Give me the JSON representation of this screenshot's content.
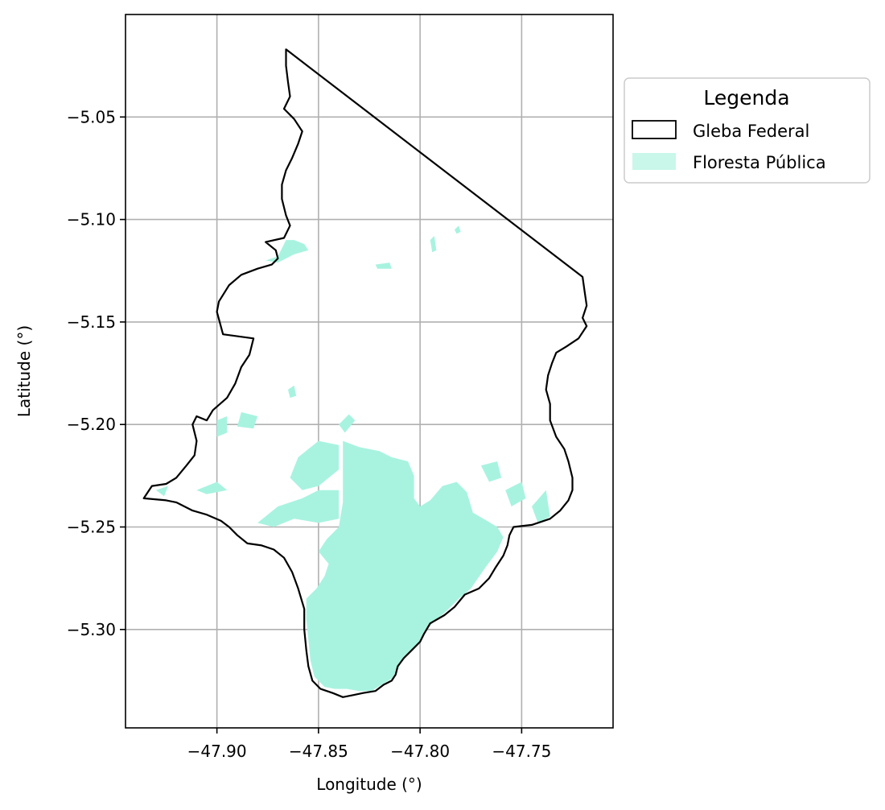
{
  "chart_data": {
    "type": "map",
    "xlabel": "Longitude (°)",
    "ylabel": "Latitude (°)",
    "xlim": [
      -47.945,
      -47.705
    ],
    "ylim": [
      -5.348,
      -5.0
    ],
    "x_ticks": [
      -47.9,
      -47.85,
      -47.8,
      -47.75
    ],
    "x_tick_labels": [
      "−47.90",
      "−47.85",
      "−47.80",
      "−47.75"
    ],
    "y_ticks": [
      -5.05,
      -5.1,
      -5.15,
      -5.2,
      -5.25,
      -5.3
    ],
    "y_tick_labels": [
      "−5.05",
      "−5.10",
      "−5.15",
      "−5.20",
      "−5.25",
      "−5.30"
    ],
    "grid": true,
    "legend": {
      "title": "Legenda",
      "placement": "outside-right",
      "entries": [
        {
          "label": "Gleba Federal",
          "style": "outline",
          "color": "#000000"
        },
        {
          "label": "Floresta Pública",
          "style": "fill",
          "color": "#a8f3e0"
        }
      ]
    },
    "colors": {
      "gleba": "#000000",
      "floresta": "#a8f3e0"
    },
    "gleba_federal": [
      [
        -47.866,
        -5.017
      ],
      [
        -47.72,
        -5.128
      ],
      [
        -47.719,
        -5.135
      ],
      [
        -47.718,
        -5.142
      ],
      [
        -47.72,
        -5.148
      ],
      [
        -47.718,
        -5.152
      ],
      [
        -47.722,
        -5.158
      ],
      [
        -47.728,
        -5.162
      ],
      [
        -47.733,
        -5.165
      ],
      [
        -47.735,
        -5.17
      ],
      [
        -47.737,
        -5.176
      ],
      [
        -47.738,
        -5.183
      ],
      [
        -47.736,
        -5.19
      ],
      [
        -47.736,
        -5.198
      ],
      [
        -47.733,
        -5.206
      ],
      [
        -47.729,
        -5.212
      ],
      [
        -47.727,
        -5.218
      ],
      [
        -47.725,
        -5.226
      ],
      [
        -47.725,
        -5.232
      ],
      [
        -47.727,
        -5.237
      ],
      [
        -47.731,
        -5.242
      ],
      [
        -47.736,
        -5.246
      ],
      [
        -47.745,
        -5.249
      ],
      [
        -47.754,
        -5.25
      ],
      [
        -47.756,
        -5.254
      ],
      [
        -47.757,
        -5.259
      ],
      [
        -47.759,
        -5.264
      ],
      [
        -47.763,
        -5.27
      ],
      [
        -47.766,
        -5.275
      ],
      [
        -47.771,
        -5.28
      ],
      [
        -47.778,
        -5.283
      ],
      [
        -47.783,
        -5.289
      ],
      [
        -47.788,
        -5.293
      ],
      [
        -47.795,
        -5.297
      ],
      [
        -47.798,
        -5.302
      ],
      [
        -47.8,
        -5.306
      ],
      [
        -47.804,
        -5.31
      ],
      [
        -47.808,
        -5.314
      ],
      [
        -47.811,
        -5.318
      ],
      [
        -47.812,
        -5.322
      ],
      [
        -47.814,
        -5.325
      ],
      [
        -47.818,
        -5.327
      ],
      [
        -47.822,
        -5.33
      ],
      [
        -47.828,
        -5.331
      ],
      [
        -47.833,
        -5.332
      ],
      [
        -47.838,
        -5.333
      ],
      [
        -47.843,
        -5.331
      ],
      [
        -47.849,
        -5.329
      ],
      [
        -47.853,
        -5.325
      ],
      [
        -47.855,
        -5.318
      ],
      [
        -47.856,
        -5.31
      ],
      [
        -47.857,
        -5.3
      ],
      [
        -47.857,
        -5.29
      ],
      [
        -47.86,
        -5.28
      ],
      [
        -47.863,
        -5.272
      ],
      [
        -47.867,
        -5.265
      ],
      [
        -47.872,
        -5.261
      ],
      [
        -47.878,
        -5.259
      ],
      [
        -47.885,
        -5.258
      ],
      [
        -47.89,
        -5.254
      ],
      [
        -47.894,
        -5.25
      ],
      [
        -47.898,
        -5.247
      ],
      [
        -47.905,
        -5.244
      ],
      [
        -47.912,
        -5.242
      ],
      [
        -47.92,
        -5.238
      ],
      [
        -47.925,
        -5.237
      ],
      [
        -47.936,
        -5.236
      ],
      [
        -47.932,
        -5.23
      ],
      [
        -47.925,
        -5.229
      ],
      [
        -47.92,
        -5.226
      ],
      [
        -47.915,
        -5.22
      ],
      [
        -47.911,
        -5.215
      ],
      [
        -47.91,
        -5.208
      ],
      [
        -47.912,
        -5.2
      ],
      [
        -47.91,
        -5.196
      ],
      [
        -47.905,
        -5.198
      ],
      [
        -47.902,
        -5.193
      ],
      [
        -47.895,
        -5.187
      ],
      [
        -47.891,
        -5.18
      ],
      [
        -47.888,
        -5.172
      ],
      [
        -47.884,
        -5.166
      ],
      [
        -47.882,
        -5.158
      ],
      [
        -47.897,
        -5.156
      ],
      [
        -47.9,
        -5.145
      ],
      [
        -47.899,
        -5.14
      ],
      [
        -47.894,
        -5.132
      ],
      [
        -47.888,
        -5.127
      ],
      [
        -47.88,
        -5.124
      ],
      [
        -47.873,
        -5.122
      ],
      [
        -47.87,
        -5.119
      ],
      [
        -47.871,
        -5.115
      ],
      [
        -47.876,
        -5.111
      ],
      [
        -47.867,
        -5.109
      ],
      [
        -47.864,
        -5.103
      ],
      [
        -47.866,
        -5.098
      ],
      [
        -47.868,
        -5.09
      ],
      [
        -47.868,
        -5.083
      ],
      [
        -47.866,
        -5.076
      ],
      [
        -47.863,
        -5.07
      ],
      [
        -47.86,
        -5.063
      ],
      [
        -47.858,
        -5.057
      ],
      [
        -47.862,
        -5.051
      ],
      [
        -47.867,
        -5.046
      ],
      [
        -47.864,
        -5.04
      ],
      [
        -47.865,
        -5.033
      ],
      [
        -47.866,
        -5.025
      ],
      [
        -47.866,
        -5.017
      ]
    ],
    "floresta_publica": [
      [
        [
          -47.838,
          -5.208
        ],
        [
          -47.83,
          -5.211
        ],
        [
          -47.82,
          -5.213
        ],
        [
          -47.814,
          -5.216
        ],
        [
          -47.806,
          -5.218
        ],
        [
          -47.803,
          -5.225
        ],
        [
          -47.803,
          -5.236
        ],
        [
          -47.8,
          -5.24
        ],
        [
          -47.795,
          -5.237
        ],
        [
          -47.789,
          -5.23
        ],
        [
          -47.782,
          -5.228
        ],
        [
          -47.777,
          -5.233
        ],
        [
          -47.774,
          -5.243
        ],
        [
          -47.767,
          -5.247
        ],
        [
          -47.762,
          -5.25
        ],
        [
          -47.759,
          -5.255
        ],
        [
          -47.762,
          -5.262
        ],
        [
          -47.768,
          -5.27
        ],
        [
          -47.775,
          -5.28
        ],
        [
          -47.781,
          -5.285
        ],
        [
          -47.787,
          -5.291
        ],
        [
          -47.793,
          -5.296
        ],
        [
          -47.798,
          -5.301
        ],
        [
          -47.8,
          -5.306
        ],
        [
          -47.805,
          -5.311
        ],
        [
          -47.809,
          -5.315
        ],
        [
          -47.811,
          -5.32
        ],
        [
          -47.814,
          -5.324
        ],
        [
          -47.819,
          -5.327
        ],
        [
          -47.824,
          -5.33
        ],
        [
          -47.83,
          -5.33
        ],
        [
          -47.836,
          -5.329
        ],
        [
          -47.842,
          -5.329
        ],
        [
          -47.847,
          -5.328
        ],
        [
          -47.852,
          -5.323
        ],
        [
          -47.854,
          -5.315
        ],
        [
          -47.855,
          -5.305
        ],
        [
          -47.856,
          -5.295
        ],
        [
          -47.856,
          -5.285
        ],
        [
          -47.851,
          -5.28
        ],
        [
          -47.847,
          -5.274
        ],
        [
          -47.845,
          -5.268
        ],
        [
          -47.85,
          -5.262
        ],
        [
          -47.846,
          -5.256
        ],
        [
          -47.84,
          -5.25
        ],
        [
          -47.838,
          -5.238
        ],
        [
          -47.838,
          -5.222
        ]
      ],
      [
        [
          -47.876,
          -5.12
        ],
        [
          -47.87,
          -5.118
        ],
        [
          -47.866,
          -5.11
        ],
        [
          -47.862,
          -5.11
        ],
        [
          -47.857,
          -5.112
        ],
        [
          -47.855,
          -5.115
        ],
        [
          -47.862,
          -5.117
        ],
        [
          -47.87,
          -5.121
        ]
      ],
      [
        [
          -47.88,
          -5.248
        ],
        [
          -47.87,
          -5.24
        ],
        [
          -47.858,
          -5.236
        ],
        [
          -47.85,
          -5.232
        ],
        [
          -47.84,
          -5.232
        ],
        [
          -47.84,
          -5.246
        ],
        [
          -47.85,
          -5.248
        ],
        [
          -47.862,
          -5.246
        ],
        [
          -47.872,
          -5.25
        ]
      ],
      [
        [
          -47.91,
          -5.232
        ],
        [
          -47.9,
          -5.228
        ],
        [
          -47.895,
          -5.232
        ],
        [
          -47.905,
          -5.234
        ]
      ],
      [
        [
          -47.93,
          -5.232
        ],
        [
          -47.924,
          -5.23
        ],
        [
          -47.926,
          -5.235
        ]
      ],
      [
        [
          -47.9,
          -5.198
        ],
        [
          -47.895,
          -5.196
        ],
        [
          -47.895,
          -5.204
        ],
        [
          -47.9,
          -5.206
        ]
      ],
      [
        [
          -47.888,
          -5.194
        ],
        [
          -47.88,
          -5.196
        ],
        [
          -47.882,
          -5.202
        ],
        [
          -47.89,
          -5.201
        ]
      ],
      [
        [
          -47.85,
          -5.208
        ],
        [
          -47.84,
          -5.21
        ],
        [
          -47.84,
          -5.222
        ],
        [
          -47.85,
          -5.23
        ],
        [
          -47.858,
          -5.232
        ],
        [
          -47.864,
          -5.226
        ],
        [
          -47.86,
          -5.216
        ]
      ],
      [
        [
          -47.84,
          -5.2
        ],
        [
          -47.835,
          -5.195
        ],
        [
          -47.832,
          -5.198
        ],
        [
          -47.837,
          -5.204
        ]
      ],
      [
        [
          -47.865,
          -5.183
        ],
        [
          -47.862,
          -5.181
        ],
        [
          -47.861,
          -5.186
        ],
        [
          -47.864,
          -5.187
        ]
      ],
      [
        [
          -47.822,
          -5.122
        ],
        [
          -47.815,
          -5.121
        ],
        [
          -47.814,
          -5.124
        ],
        [
          -47.821,
          -5.124
        ]
      ],
      [
        [
          -47.795,
          -5.11
        ],
        [
          -47.793,
          -5.108
        ],
        [
          -47.792,
          -5.115
        ],
        [
          -47.794,
          -5.116
        ]
      ],
      [
        [
          -47.783,
          -5.105
        ],
        [
          -47.781,
          -5.103
        ],
        [
          -47.78,
          -5.106
        ],
        [
          -47.782,
          -5.107
        ]
      ],
      [
        [
          -47.758,
          -5.232
        ],
        [
          -47.75,
          -5.228
        ],
        [
          -47.748,
          -5.236
        ],
        [
          -47.755,
          -5.24
        ]
      ],
      [
        [
          -47.77,
          -5.22
        ],
        [
          -47.762,
          -5.218
        ],
        [
          -47.76,
          -5.226
        ],
        [
          -47.766,
          -5.228
        ]
      ],
      [
        [
          -47.745,
          -5.24
        ],
        [
          -47.738,
          -5.232
        ],
        [
          -47.736,
          -5.245
        ],
        [
          -47.742,
          -5.248
        ]
      ]
    ]
  }
}
